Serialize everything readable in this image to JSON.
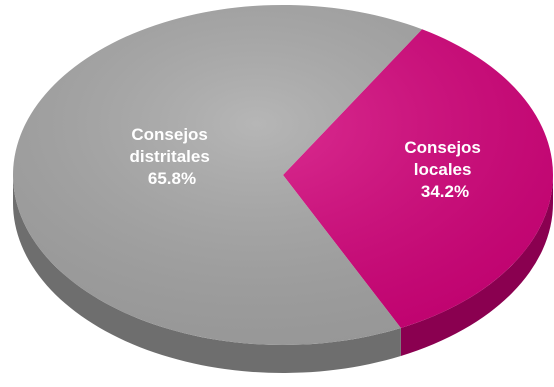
{
  "chart_data": {
    "type": "pie",
    "title": "",
    "slices": [
      {
        "label_lines": [
          "Consejos",
          "distritales",
          "65.8%"
        ],
        "name": "Consejos distritales",
        "value": 65.8,
        "color": "#a6a6a6",
        "side_color": "#6e6e6e"
      },
      {
        "label_lines": [
          "Consejos",
          "locales",
          "34.2%"
        ],
        "name": "Consejos locales",
        "value": 34.2,
        "color": "#d4007a",
        "side_color": "#8a0050"
      }
    ],
    "style": "3d-tilted",
    "legend": "none"
  }
}
